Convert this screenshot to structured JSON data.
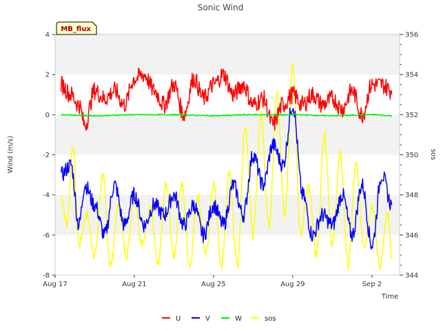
{
  "chart_data": {
    "type": "line",
    "title": "Sonic Wind",
    "badge": "MB_flux",
    "xlabel": "Time",
    "ylabel_left": "Wind (m/s)",
    "ylabel_right": "sos",
    "ylim_left": [
      -8,
      4
    ],
    "ylim_right": [
      344,
      356
    ],
    "xlim_days": [
      0,
      17.4
    ],
    "x_ticks": [
      {
        "label": "Aug 17",
        "day": 0
      },
      {
        "label": "Aug 21",
        "day": 4
      },
      {
        "label": "Aug 25",
        "day": 8
      },
      {
        "label": "Aug 29",
        "day": 12
      },
      {
        "label": "Sep 2",
        "day": 16
      }
    ],
    "y_ticks_left": [
      -8,
      -6,
      -4,
      -2,
      0,
      2,
      4
    ],
    "y_ticks_right": [
      344,
      346,
      348,
      350,
      352,
      354,
      356
    ],
    "series": [
      {
        "name": "U",
        "color": "#ff0000",
        "axis": "left",
        "day": [
          0.3,
          0.8,
          1.2,
          1.5,
          2.0,
          2.5,
          3.0,
          3.5,
          4.0,
          4.5,
          5.0,
          5.5,
          6.0,
          6.5,
          7.0,
          7.5,
          8.0,
          8.5,
          9.0,
          9.5,
          10.0,
          10.5,
          11.0,
          11.5,
          12.0,
          12.5,
          13.0,
          13.5,
          14.0,
          14.5,
          15.0,
          15.5,
          16.0,
          16.5,
          17.0
        ],
        "values": [
          1.5,
          1.0,
          0.5,
          -0.5,
          1.2,
          0.8,
          1.2,
          0.5,
          1.8,
          2.0,
          1.2,
          0.5,
          1.5,
          0.0,
          1.8,
          0.8,
          1.5,
          2.0,
          1.0,
          1.5,
          0.5,
          0.8,
          -0.5,
          0.5,
          1.0,
          0.5,
          1.0,
          0.5,
          0.8,
          0.3,
          1.2,
          0.0,
          1.5,
          1.5,
          1.2
        ]
      },
      {
        "name": "V",
        "color": "#0000ff",
        "axis": "left",
        "day": [
          0.3,
          0.8,
          1.2,
          1.5,
          2.0,
          2.5,
          3.0,
          3.5,
          4.0,
          4.5,
          5.0,
          5.5,
          6.0,
          6.5,
          7.0,
          7.5,
          8.0,
          8.5,
          9.0,
          9.5,
          10.0,
          10.5,
          11.0,
          11.5,
          12.0,
          12.5,
          13.0,
          13.5,
          14.0,
          14.5,
          15.0,
          15.5,
          16.0,
          16.5,
          17.0
        ],
        "values": [
          -3.0,
          -2.5,
          -5.5,
          -3.5,
          -4.5,
          -6.0,
          -3.5,
          -5.5,
          -4.0,
          -5.5,
          -4.5,
          -5.0,
          -4.0,
          -5.5,
          -4.5,
          -6.0,
          -4.5,
          -5.5,
          -3.5,
          -5.0,
          -2.0,
          -3.5,
          -1.5,
          -2.5,
          0.5,
          -4.0,
          -6.0,
          -5.0,
          -5.5,
          -4.0,
          -6.0,
          -3.5,
          -6.5,
          -3.0,
          -4.5
        ]
      },
      {
        "name": "W",
        "color": "#00ee00",
        "axis": "left",
        "day": [
          0.3,
          2.0,
          4.0,
          6.0,
          8.0,
          10.0,
          12.0,
          14.0,
          16.0,
          17.0
        ],
        "values": [
          0.0,
          -0.05,
          0.0,
          0.0,
          -0.05,
          0.0,
          0.0,
          -0.05,
          0.0,
          -0.05
        ]
      },
      {
        "name": "sos",
        "color": "#ffff00",
        "axis": "right",
        "day": [
          0.3,
          0.6,
          0.9,
          1.2,
          1.6,
          2.0,
          2.4,
          2.8,
          3.2,
          3.6,
          4.0,
          4.4,
          4.8,
          5.2,
          5.6,
          6.0,
          6.4,
          6.8,
          7.2,
          7.6,
          8.0,
          8.4,
          8.8,
          9.2,
          9.6,
          10.0,
          10.4,
          10.8,
          11.2,
          11.6,
          12.0,
          12.4,
          12.8,
          13.2,
          13.6,
          14.0,
          14.4,
          14.8,
          15.2,
          15.6,
          16.0,
          16.4,
          16.8,
          17.0
        ],
        "values": [
          348.0,
          346.5,
          350.5,
          345.5,
          347.0,
          345.0,
          349.0,
          344.5,
          347.5,
          345.0,
          348.0,
          345.5,
          347.5,
          344.5,
          348.5,
          345.0,
          348.5,
          344.5,
          348.0,
          345.0,
          348.5,
          344.5,
          349.0,
          344.5,
          351.5,
          346.0,
          352.0,
          346.5,
          353.0,
          347.0,
          354.5,
          346.0,
          348.5,
          345.0,
          351.0,
          345.5,
          350.0,
          344.5,
          349.5,
          345.5,
          347.5,
          344.5,
          347.0,
          345.0
        ]
      }
    ]
  }
}
